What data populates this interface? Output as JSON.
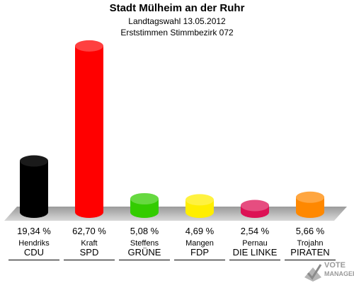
{
  "chart_data": {
    "type": "bar",
    "title": "Stadt Mülheim an der Ruhr",
    "subtitle": "Landtagswahl 13.05.2012",
    "subtitle2": "Erststimmen Stimmbezirk 072",
    "categories": [
      "CDU",
      "SPD",
      "GRÜNE",
      "FDP",
      "DIE LINKE",
      "PIRATEN"
    ],
    "candidates": [
      "Hendriks",
      "Kraft",
      "Steffens",
      "Mangen",
      "Pernau",
      "Trojahn"
    ],
    "values": [
      19.34,
      62.7,
      5.08,
      4.69,
      2.54,
      5.66
    ],
    "value_labels": [
      "19,34 %",
      "62,70 %",
      "5,08 %",
      "4,69 %",
      "2,54 %",
      "5,66 %"
    ],
    "colors": [
      "#000000",
      "#ff0000",
      "#33cc00",
      "#ffee00",
      "#dd1155",
      "#ff8800"
    ],
    "ylim": [
      0,
      65
    ],
    "grid": false
  },
  "logo": {
    "line1": "VOTE",
    "line2": "MANAGER"
  }
}
